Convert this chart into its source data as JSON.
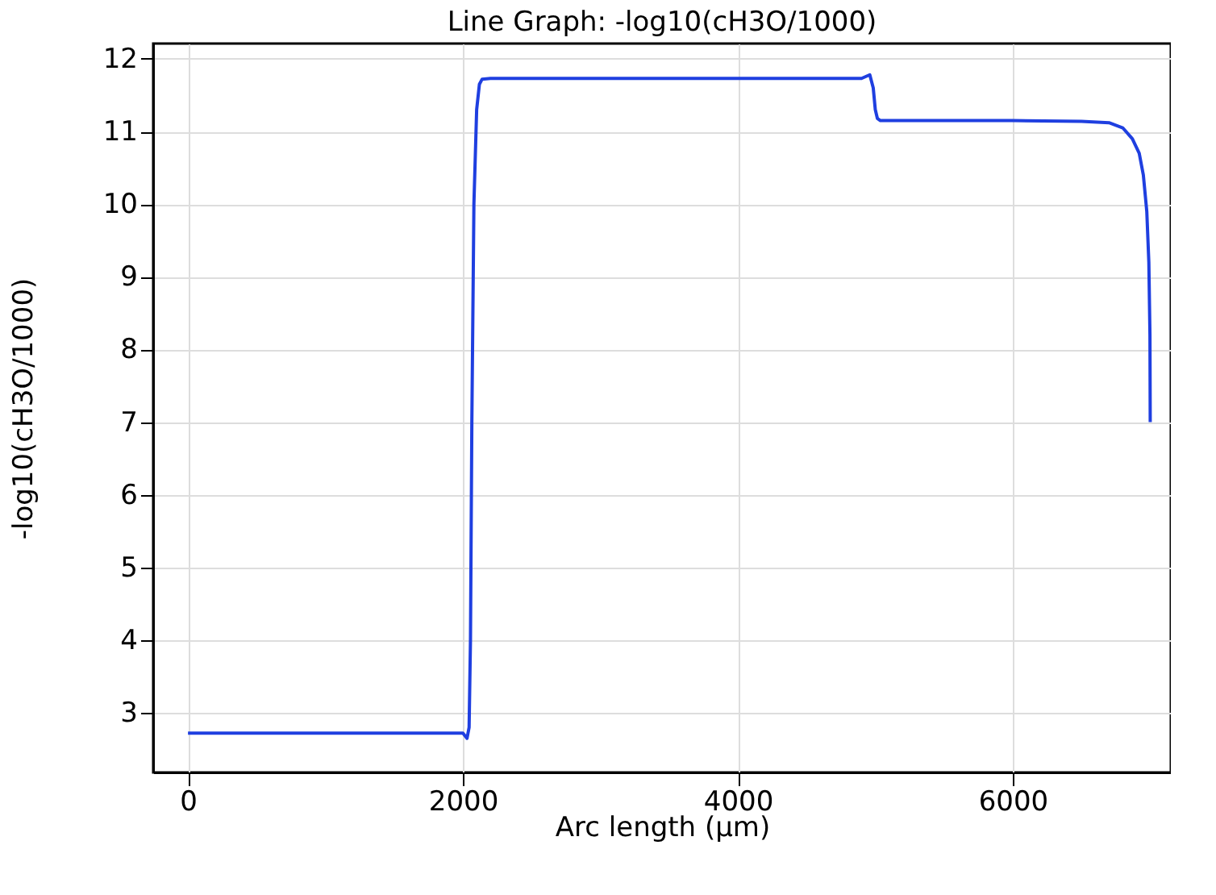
{
  "chart_data": {
    "type": "line",
    "title": "Line Graph: -log10(cH3O/1000)",
    "xlabel": "Arc length (µm)",
    "ylabel": "-log10(cH3O/1000)",
    "x": [
      0,
      500,
      1000,
      1500,
      1900,
      2000,
      2030,
      2045,
      2055,
      2065,
      2080,
      2100,
      2120,
      2140,
      2200,
      3000,
      4000,
      4900,
      4960,
      4985,
      5000,
      5015,
      5037,
      5100,
      6000,
      6500,
      6700,
      6800,
      6870,
      6920,
      6950,
      6975,
      6990,
      6998,
      7000
    ],
    "series": [
      {
        "color": "#1f3fe0",
        "values": [
          2.72,
          2.72,
          2.72,
          2.72,
          2.72,
          2.72,
          2.65,
          2.8,
          4,
          7,
          10,
          11.3,
          11.65,
          11.72,
          11.73,
          11.73,
          11.73,
          11.73,
          11.78,
          11.6,
          11.3,
          11.18,
          11.15,
          11.15,
          11.15,
          11.14,
          11.12,
          11.05,
          10.9,
          10.7,
          10.4,
          9.9,
          9.2,
          8.2,
          7.0
        ]
      }
    ],
    "xlim": [
      -253,
      7150
    ],
    "ylim": [
      2.18,
      12.21
    ],
    "xticks": [
      0,
      2000,
      4000,
      6000
    ],
    "yticks": [
      3,
      4,
      5,
      6,
      7,
      8,
      9,
      10,
      11,
      12
    ],
    "grid": true
  }
}
